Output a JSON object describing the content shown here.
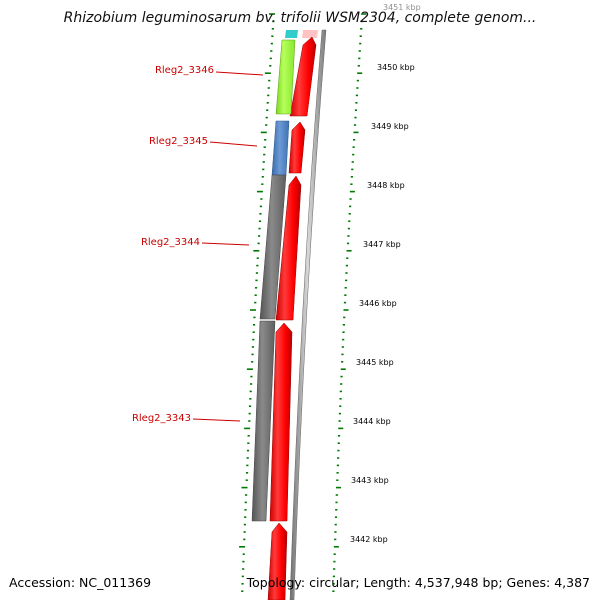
{
  "title": "Rhizobium leguminosarum bv. trifolii WSM2304, complete genom...",
  "footer": {
    "accession": "Accession: NC_011369",
    "topology": "Topology: circular; Length: 4,537,948 bp; Genes: 4,387"
  },
  "colors": {
    "forward_cds": "#ff0000",
    "gene_lime": "#99ff33",
    "gene_blue": "#4a7fbf",
    "gene_gray": "#6e6e6e",
    "tick_green": "#007a00",
    "backbone": "#8a8a8a",
    "label_red": "#cc0000",
    "cyan": "#33cccc"
  },
  "genes": [
    {
      "id": "Rleg2_3346",
      "label": "Rleg2_3346",
      "color_key": "gene_lime"
    },
    {
      "id": "Rleg2_3345",
      "label": "Rleg2_3345",
      "color_key": "gene_blue"
    },
    {
      "id": "Rleg2_3344",
      "label": "Rleg2_3344",
      "color_key": "gene_gray"
    },
    {
      "id": "Rleg2_3343",
      "label": "Rleg2_3343",
      "color_key": "gene_gray"
    }
  ],
  "kbp_labels": [
    "3451 kbp",
    "3450 kbp",
    "3449 kbp",
    "3448 kbp",
    "3447 kbp",
    "3446 kbp",
    "3445 kbp",
    "3444 kbp",
    "3443 kbp",
    "3442 kbp"
  ]
}
